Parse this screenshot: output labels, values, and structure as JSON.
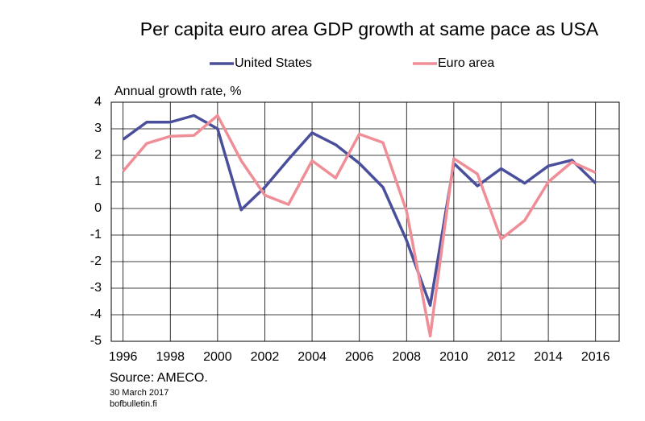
{
  "chart_data": {
    "type": "line",
    "title": "Per capita euro area GDP growth at same pace as USA",
    "y_label": "Annual growth rate, %",
    "source": "Source: AMECO.",
    "date": "30 March 2017",
    "site": "bofbulletin.fi",
    "x": [
      1996,
      1997,
      1998,
      1999,
      2000,
      2001,
      2002,
      2003,
      2004,
      2005,
      2006,
      2007,
      2008,
      2009,
      2010,
      2011,
      2012,
      2013,
      2014,
      2015,
      2016
    ],
    "xlim": [
      1995.5,
      2017
    ],
    "xticks": [
      1996,
      1998,
      2000,
      2002,
      2004,
      2006,
      2008,
      2010,
      2012,
      2014,
      2016
    ],
    "ylim": [
      -5,
      4
    ],
    "yticks": [
      -5,
      -4,
      -3,
      -2,
      -1,
      0,
      1,
      2,
      3,
      4
    ],
    "grid": true,
    "legend": "top",
    "series": [
      {
        "name": "United States",
        "color": "#4a4f9c",
        "values": [
          2.6,
          3.25,
          3.25,
          3.5,
          3.0,
          -0.05,
          0.8,
          1.85,
          2.85,
          2.4,
          1.7,
          0.8,
          -1.2,
          -3.65,
          1.7,
          0.85,
          1.5,
          0.95,
          1.6,
          1.82,
          0.95
        ]
      },
      {
        "name": "Euro area",
        "color": "#ef8e96",
        "values": [
          1.4,
          2.45,
          2.72,
          2.75,
          3.5,
          1.8,
          0.5,
          0.15,
          1.8,
          1.15,
          2.8,
          2.48,
          -0.1,
          -4.8,
          1.88,
          1.3,
          -1.15,
          -0.45,
          1.0,
          1.75,
          1.35
        ]
      }
    ]
  }
}
